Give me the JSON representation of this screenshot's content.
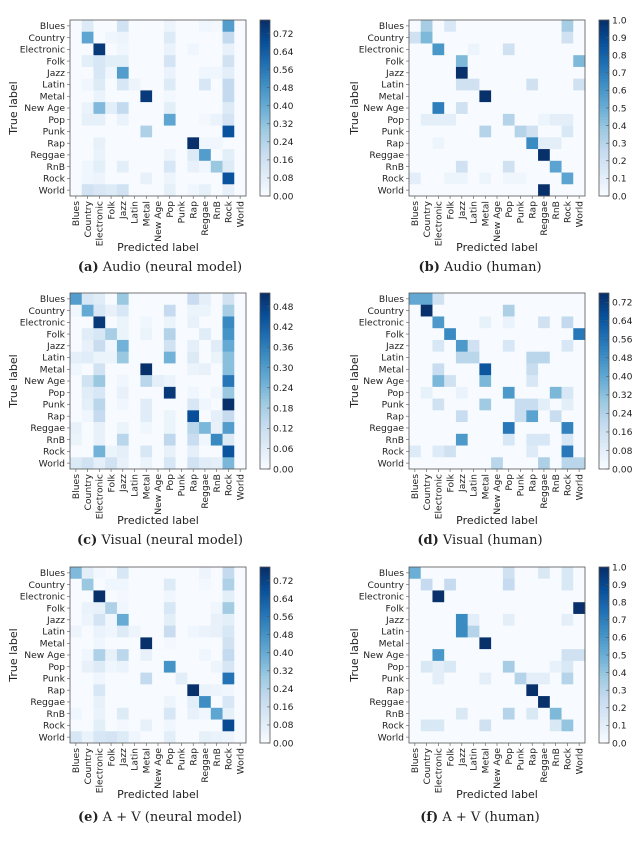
{
  "chart_data": [
    {
      "type": "heatmap",
      "caption_letter": "(a)",
      "caption": "Audio (neural model)",
      "xlabel": "Predicted label",
      "ylabel": "True label",
      "labels": [
        "Blues",
        "Country",
        "Electronic",
        "Folk",
        "Jazz",
        "Latin",
        "Metal",
        "New Age",
        "Pop",
        "Punk",
        "Rap",
        "Reggae",
        "RnB",
        "Rock",
        "World"
      ],
      "vmin": 0,
      "vmax": 0.78,
      "colorbar_ticks": [
        "0.00",
        "0.08",
        "0.16",
        "0.24",
        "0.32",
        "0.40",
        "0.48",
        "0.56",
        "0.64",
        "0.72"
      ],
      "colormap": "Blues",
      "rows": {
        "Blues": {
          "Country": 0.1,
          "Jazz": 0.15,
          "Pop": 0.04,
          "Reggae": 0.03,
          "RnB": 0.02,
          "Rock": 0.45
        },
        "Country": {
          "Country": 0.42,
          "Folk": 0.03,
          "Jazz": 0.04,
          "Pop": 0.1,
          "Rock": 0.2
        },
        "Electronic": {
          "Electronic": 0.75,
          "Jazz": 0.03,
          "Pop": 0.05,
          "Rap": 0.03,
          "Rock": 0.06
        },
        "Folk": {
          "Country": 0.08,
          "Electronic": 0.12,
          "Folk": 0.08,
          "Jazz": 0.08,
          "Pop": 0.14,
          "Rock": 0.15
        },
        "Jazz": {
          "Electronic": 0.12,
          "Folk": 0.03,
          "Jazz": 0.45,
          "Pop": 0.05,
          "Reggae": 0.03,
          "RnB": 0.03,
          "Rock": 0.08
        },
        "Latin": {
          "Country": 0.03,
          "Electronic": 0.1,
          "Jazz": 0.12,
          "Latin": 0.04,
          "Pop": 0.1,
          "Reggae": 0.12,
          "Rock": 0.2
        },
        "Metal": {
          "Electronic": 0.05,
          "Metal": 0.75,
          "Pop": 0.02,
          "Rock": 0.2
        },
        "New Age": {
          "Country": 0.05,
          "Electronic": 0.35,
          "Folk": 0.08,
          "Jazz": 0.2,
          "Pop": 0.08,
          "Rock": 0.1
        },
        "Pop": {
          "Country": 0.07,
          "Electronic": 0.07,
          "Jazz": 0.05,
          "Pop": 0.42,
          "Reggae": 0.02,
          "RnB": 0.05,
          "Rock": 0.14
        },
        "Punk": {
          "Metal": 0.25,
          "Rock": 0.68
        },
        "Rap": {
          "Electronic": 0.06,
          "Rap": 0.78,
          "Reggae": 0.03,
          "RnB": 0.03
        },
        "Reggae": {
          "Electronic": 0.05,
          "Pop": 0.04,
          "Rap": 0.1,
          "Reggae": 0.45,
          "Rock": 0.08
        },
        "RnB": {
          "Country": 0.03,
          "Electronic": 0.08,
          "Jazz": 0.08,
          "Pop": 0.12,
          "Rap": 0.06,
          "Reggae": 0.03,
          "RnB": 0.3,
          "Rock": 0.1
        },
        "Rock": {
          "Country": 0.03,
          "Electronic": 0.04,
          "Metal": 0.06,
          "Pop": 0.04,
          "Rock": 0.68
        },
        "World": {
          "Country": 0.15,
          "Electronic": 0.12,
          "Folk": 0.1,
          "Jazz": 0.15,
          "Pop": 0.07,
          "Rap": 0.03,
          "Reggae": 0.07,
          "Rock": 0.06
        }
      }
    },
    {
      "type": "heatmap",
      "caption_letter": "(b)",
      "caption": "Audio (human)",
      "xlabel": "Predicted label",
      "ylabel": "True label",
      "labels": [
        "Blues",
        "Country",
        "Electronic",
        "Folk",
        "Jazz",
        "Latin",
        "Metal",
        "New Age",
        "Pop",
        "Punk",
        "Rap",
        "Reggae",
        "RnB",
        "Rock",
        "World"
      ],
      "vmin": 0,
      "vmax": 1.0,
      "colorbar_ticks": [
        "0.0",
        "0.1",
        "0.2",
        "0.3",
        "0.4",
        "0.5",
        "0.6",
        "0.7",
        "0.8",
        "0.9",
        "1.0"
      ],
      "colormap": "Blues",
      "rows": {
        "Blues": {
          "Country": 0.35,
          "Folk": 0.15,
          "Rock": 0.35
        },
        "Country": {
          "Blues": 0.2,
          "Country": 0.45,
          "Rock": 0.2
        },
        "Electronic": {
          "Electronic": 0.6,
          "Latin": 0.05,
          "Pop": 0.2
        },
        "Folk": {
          "Jazz": 0.45,
          "World": 0.45
        },
        "Jazz": {
          "Jazz": 1.0
        },
        "Latin": {
          "Jazz": 0.2,
          "Latin": 0.2,
          "Rap": 0.2,
          "World": 0.2
        },
        "Metal": {
          "Metal": 1.0
        },
        "New Age": {
          "Electronic": 0.7,
          "Jazz": 0.2
        },
        "Pop": {
          "Country": 0.1,
          "Electronic": 0.1,
          "Folk": 0.1,
          "Pop": 0.3,
          "Reggae": 0.05,
          "RnB": 0.1,
          "Rock": 0.1
        },
        "Punk": {
          "Metal": 0.3,
          "Punk": 0.3,
          "Rap": 0.2,
          "Rock": 0.15
        },
        "Rap": {
          "Electronic": 0.05,
          "Rap": 0.65,
          "Reggae": 0.1,
          "RnB": 0.1
        },
        "Reggae": {
          "Reggae": 1.0
        },
        "RnB": {
          "Jazz": 0.2,
          "Pop": 0.2,
          "RnB": 0.55
        },
        "Rock": {
          "Blues": 0.1,
          "Folk": 0.05,
          "Jazz": 0.05,
          "Metal": 0.05,
          "Pop": 0.04,
          "Punk": 0.04,
          "Rock": 0.55
        },
        "World": {
          "Reggae": 1.0
        }
      }
    },
    {
      "type": "heatmap",
      "caption_letter": "(c)",
      "caption": "Visual (neural model)",
      "xlabel": "Predicted label",
      "ylabel": "True label",
      "labels": [
        "Blues",
        "Country",
        "Electronic",
        "Folk",
        "Jazz",
        "Latin",
        "Metal",
        "New Age",
        "Pop",
        "Punk",
        "Rap",
        "Reggae",
        "RnB",
        "Rock",
        "World"
      ],
      "vmin": 0,
      "vmax": 0.52,
      "colorbar_ticks": [
        "0.00",
        "0.06",
        "0.12",
        "0.18",
        "0.24",
        "0.30",
        "0.36",
        "0.42",
        "0.48"
      ],
      "colormap": "Blues",
      "rows": {
        "Blues": {
          "Blues": 0.3,
          "Country": 0.08,
          "Electronic": 0.06,
          "Jazz": 0.2,
          "Rap": 0.12,
          "Reggae": 0.05,
          "Rock": 0.1
        },
        "Country": {
          "Blues": 0.02,
          "Country": 0.27,
          "Electronic": 0.08,
          "Folk": 0.04,
          "Jazz": 0.08,
          "Pop": 0.13,
          "Rap": 0.03,
          "Reggae": 0.03,
          "Rock": 0.18
        },
        "Electronic": {
          "Electronic": 0.5,
          "Jazz": 0.03,
          "Metal": 0.02,
          "Pop": 0.03,
          "Rap": 0.04,
          "Rock": 0.34
        },
        "Folk": {
          "Country": 0.06,
          "Electronic": 0.08,
          "Folk": 0.18,
          "Jazz": 0.03,
          "Metal": 0.03,
          "Pop": 0.16,
          "Reggae": 0.06,
          "Rock": 0.32
        },
        "Jazz": {
          "Country": 0.04,
          "Electronic": 0.12,
          "Folk": 0.02,
          "Jazz": 0.25,
          "Pop": 0.1,
          "Rap": 0.05,
          "RnB": 0.06,
          "Rock": 0.27
        },
        "Latin": {
          "Blues": 0.05,
          "Country": 0.06,
          "Electronic": 0.03,
          "Folk": 0.03,
          "Jazz": 0.2,
          "Pop": 0.25,
          "Rap": 0.07,
          "RnB": 0.03,
          "Rock": 0.22
        },
        "Metal": {
          "Blues": 0.02,
          "Electronic": 0.1,
          "Metal": 0.52,
          "Rap": 0.03,
          "Reggae": 0.04,
          "Rock": 0.22
        },
        "New Age": {
          "Country": 0.1,
          "Electronic": 0.2,
          "Jazz": 0.02,
          "Metal": 0.15,
          "New Age": 0.05,
          "Pop": 0.03,
          "Rock": 0.38
        },
        "Pop": {
          "Country": 0.06,
          "Electronic": 0.08,
          "Jazz": 0.04,
          "Pop": 0.5,
          "Rap": 0.02,
          "RnB": 0.02,
          "Rock": 0.2
        },
        "Punk": {
          "Country": 0.05,
          "Electronic": 0.15,
          "Jazz": 0.02,
          "Metal": 0.06,
          "Rap": 0.08,
          "Reggae": 0.02,
          "Rock": 0.52
        },
        "Rap": {
          "Country": 0.02,
          "Electronic": 0.13,
          "Metal": 0.06,
          "Pop": 0.03,
          "Rap": 0.46,
          "RnB": 0.05,
          "Rock": 0.13
        },
        "Reggae": {
          "Blues": 0.04,
          "Electronic": 0.04,
          "Jazz": 0.03,
          "Metal": 0.02,
          "Pop": 0.03,
          "Rap": 0.15,
          "Reggae": 0.24,
          "RnB": 0.04,
          "Rock": 0.3
        },
        "RnB": {
          "Blues": 0.03,
          "Electronic": 0.04,
          "Jazz": 0.15,
          "Pop": 0.14,
          "Rap": 0.12,
          "Reggae": 0.02,
          "RnB": 0.34,
          "Rock": 0.07
        },
        "Rock": {
          "Electronic": 0.25,
          "Folk": 0.03,
          "Jazz": 0.05,
          "Metal": 0.08,
          "Pop": 0.04,
          "Rap": 0.05,
          "Rock": 0.45
        },
        "World": {
          "Blues": 0.07,
          "Country": 0.1,
          "Electronic": 0.05,
          "Folk": 0.1,
          "Jazz": 0.04,
          "Metal": 0.03,
          "Pop": 0.08,
          "Rap": 0.1,
          "Reggae": 0.06,
          "RnB": 0.05,
          "Rock": 0.24
        }
      }
    },
    {
      "type": "heatmap",
      "caption_letter": "(d)",
      "caption": "Visual (human)",
      "xlabel": "Predicted label",
      "ylabel": "True label",
      "labels": [
        "Blues",
        "Country",
        "Electronic",
        "Folk",
        "Jazz",
        "Latin",
        "Metal",
        "New Age",
        "Pop",
        "Punk",
        "Rap",
        "Reggae",
        "RnB",
        "Rock",
        "World"
      ],
      "vmin": 0,
      "vmax": 0.76,
      "colorbar_ticks": [
        "0.00",
        "0.08",
        "0.16",
        "0.24",
        "0.32",
        "0.40",
        "0.48",
        "0.56",
        "0.64",
        "0.72"
      ],
      "colormap": "Blues",
      "rows": {
        "Blues": {
          "Blues": 0.4,
          "Country": 0.4,
          "Electronic": 0.15
        },
        "Country": {
          "Country": 0.76,
          "Pop": 0.25
        },
        "Electronic": {
          "Electronic": 0.45,
          "Metal": 0.06,
          "Pop": 0.05,
          "Reggae": 0.15,
          "Rock": 0.2
        },
        "Folk": {
          "Folk": 0.5,
          "World": 0.55
        },
        "Jazz": {
          "Electronic": 0.12,
          "Jazz": 0.45,
          "Latin": 0.15,
          "Pop": 0.12,
          "Rock": 0.12
        },
        "Latin": {
          "Jazz": 0.22,
          "Latin": 0.22,
          "Rap": 0.22,
          "Reggae": 0.22
        },
        "Metal": {
          "Electronic": 0.18,
          "Metal": 0.65,
          "Rap": 0.18
        },
        "New Age": {
          "Electronic": 0.35,
          "Folk": 0.15,
          "Metal": 0.35,
          "Rap": 0.12
        },
        "Pop": {
          "Country": 0.06,
          "Jazz": 0.05,
          "Pop": 0.45,
          "RnB": 0.35,
          "Rock": 0.12
        },
        "Punk": {
          "Electronic": 0.15,
          "Metal": 0.28,
          "Punk": 0.18,
          "Rap": 0.18,
          "Reggae": 0.08,
          "Rock": 0.08
        },
        "Rap": {
          "Jazz": 0.18,
          "Punk": 0.18,
          "Rap": 0.42,
          "RnB": 0.18
        },
        "Reggae": {
          "Pop": 0.55,
          "Rock": 0.52
        },
        "RnB": {
          "Jazz": 0.45,
          "Pop": 0.12,
          "Rap": 0.12,
          "Reggae": 0.12,
          "Rock": 0.12
        },
        "Rock": {
          "Blues": 0.1,
          "Electronic": 0.1,
          "Folk": 0.15,
          "Rap": 0.1,
          "Rock": 0.55
        },
        "World": {
          "New Age": 0.22,
          "Reggae": 0.25,
          "Rock": 0.22,
          "World": 0.22
        }
      }
    },
    {
      "type": "heatmap",
      "caption_letter": "(e)",
      "caption": "A + V (neural model)",
      "xlabel": "Predicted label",
      "ylabel": "True label",
      "labels": [
        "Blues",
        "Country",
        "Electronic",
        "Folk",
        "Jazz",
        "Latin",
        "Metal",
        "New Age",
        "Pop",
        "Punk",
        "Rap",
        "Reggae",
        "RnB",
        "Rock",
        "World"
      ],
      "vmin": 0,
      "vmax": 0.78,
      "colorbar_ticks": [
        "0.00",
        "0.08",
        "0.16",
        "0.24",
        "0.32",
        "0.40",
        "0.48",
        "0.56",
        "0.64",
        "0.72"
      ],
      "colormap": "Blues",
      "rows": {
        "Blues": {
          "Blues": 0.35,
          "Country": 0.08,
          "Electronic": 0.02,
          "Jazz": 0.12,
          "Reggae": 0.04,
          "Rock": 0.2
        },
        "Country": {
          "Country": 0.3,
          "Folk": 0.03,
          "Jazz": 0.03,
          "Pop": 0.1,
          "Reggae": 0.02,
          "Rock": 0.25
        },
        "Electronic": {
          "Electronic": 0.78,
          "Jazz": 0.02,
          "Pop": 0.03,
          "Rock": 0.08
        },
        "Folk": {
          "Country": 0.05,
          "Electronic": 0.06,
          "Folk": 0.25,
          "Jazz": 0.03,
          "Pop": 0.12,
          "RnB": 0.03,
          "Rock": 0.28
        },
        "Jazz": {
          "Country": 0.04,
          "Electronic": 0.14,
          "Folk": 0.03,
          "Jazz": 0.4,
          "Pop": 0.08,
          "RnB": 0.06,
          "Rock": 0.08
        },
        "Latin": {
          "Blues": 0.04,
          "Electronic": 0.05,
          "Folk": 0.03,
          "Jazz": 0.1,
          "Latin": 0.04,
          "Pop": 0.18,
          "Rap": 0.03,
          "Reggae": 0.05,
          "RnB": 0.06,
          "Rock": 0.12
        },
        "Metal": {
          "Electronic": 0.03,
          "Metal": 0.78,
          "Pop": 0.02,
          "Rock": 0.15
        },
        "New Age": {
          "Country": 0.03,
          "Electronic": 0.25,
          "Folk": 0.06,
          "Jazz": 0.22,
          "Metal": 0.06,
          "Reggae": 0.03,
          "Rock": 0.2
        },
        "Pop": {
          "Country": 0.06,
          "Electronic": 0.1,
          "Folk": 0.03,
          "Jazz": 0.05,
          "Pop": 0.48,
          "RnB": 0.04,
          "Rock": 0.13
        },
        "Punk": {
          "Electronic": 0.03,
          "Metal": 0.2,
          "Punk": 0.08,
          "Rock": 0.58
        },
        "Rap": {
          "Electronic": 0.12,
          "Rap": 0.78,
          "Reggae": 0.05,
          "RnB": 0.04,
          "Rock": 0.03
        },
        "Reggae": {
          "Electronic": 0.06,
          "Pop": 0.04,
          "Rap": 0.08,
          "Reggae": 0.5,
          "Rock": 0.12
        },
        "RnB": {
          "Blues": 0.03,
          "Electronic": 0.05,
          "Jazz": 0.1,
          "Pop": 0.12,
          "Rap": 0.06,
          "Reggae": 0.03,
          "RnB": 0.42,
          "Rock": 0.07
        },
        "Rock": {
          "Electronic": 0.08,
          "Jazz": 0.02,
          "Metal": 0.06,
          "Pop": 0.03,
          "Rock": 0.7
        },
        "World": {
          "Blues": 0.12,
          "Country": 0.05,
          "Electronic": 0.12,
          "Folk": 0.14,
          "Jazz": 0.1,
          "Latin": 0.03,
          "Pop": 0.08,
          "Reggae": 0.07,
          "RnB": 0.05,
          "Rock": 0.04
        }
      }
    },
    {
      "type": "heatmap",
      "caption_letter": "(f)",
      "caption": "A + V (human)",
      "xlabel": "Predicted label",
      "ylabel": "True label",
      "labels": [
        "Blues",
        "Country",
        "Electronic",
        "Folk",
        "Jazz",
        "Latin",
        "Metal",
        "New Age",
        "Pop",
        "Punk",
        "Rap",
        "Reggae",
        "RnB",
        "Rock",
        "World"
      ],
      "vmin": 0,
      "vmax": 1.0,
      "colorbar_ticks": [
        "0.0",
        "0.1",
        "0.2",
        "0.3",
        "0.4",
        "0.5",
        "0.6",
        "0.7",
        "0.8",
        "0.9",
        "1.0"
      ],
      "colormap": "Blues",
      "rows": {
        "Blues": {
          "Blues": 0.5,
          "Pop": 0.2,
          "Reggae": 0.15,
          "Rock": 0.15
        },
        "Country": {
          "Country": 0.25,
          "Folk": 0.25,
          "Pop": 0.25,
          "Rock": 0.15
        },
        "Electronic": {
          "Electronic": 1.0
        },
        "Folk": {
          "World": 1.0
        },
        "Jazz": {
          "Jazz": 0.65,
          "Latin": 0.1,
          "Pop": 0.1,
          "Rock": 0.1
        },
        "Latin": {
          "Jazz": 0.65,
          "Latin": 0.3
        },
        "Metal": {
          "Metal": 1.0
        },
        "New Age": {
          "Electronic": 0.6,
          "Rock": 0.2,
          "World": 0.2
        },
        "Pop": {
          "Country": 0.15,
          "Electronic": 0.1,
          "Folk": 0.15,
          "Pop": 0.35,
          "RnB": 0.08,
          "Rock": 0.15
        },
        "Punk": {
          "Electronic": 0.1,
          "Metal": 0.1,
          "Punk": 0.3,
          "Rap": 0.1,
          "Reggae": 0.1,
          "Rock": 0.3
        },
        "Rap": {
          "Rap": 1.0
        },
        "Reggae": {
          "Reggae": 1.0
        },
        "RnB": {
          "Jazz": 0.15,
          "Pop": 0.3,
          "Rap": 0.15,
          "RnB": 0.45
        },
        "Rock": {
          "Country": 0.15,
          "Electronic": 0.15,
          "Metal": 0.2,
          "RnB": 0.15,
          "Rock": 0.4
        },
        "World": {}
      }
    }
  ]
}
